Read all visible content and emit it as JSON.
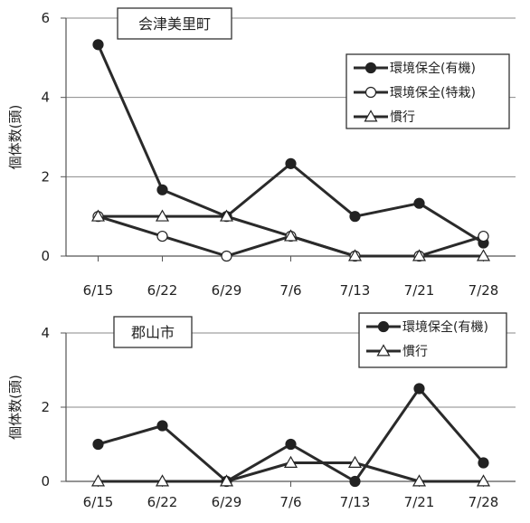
{
  "chart_data": [
    {
      "type": "line",
      "title": "会津美里町",
      "ylabel": "個体数(頭)",
      "xlabel": "",
      "categories": [
        "6/15",
        "6/22",
        "6/29",
        "7/6",
        "7/13",
        "7/21",
        "7/28"
      ],
      "ylim": [
        0,
        6
      ],
      "yticks": [
        0,
        2,
        4,
        6
      ],
      "grid": true,
      "legend_position": "top-right",
      "series": [
        {
          "name": "環境保全(有機)",
          "marker": "filled-circle",
          "values": [
            5.33,
            1.67,
            1.0,
            2.33,
            1.0,
            1.33,
            0.33
          ]
        },
        {
          "name": "環境保全(特栽)",
          "marker": "open-circle",
          "values": [
            1.0,
            0.5,
            0.0,
            0.5,
            0.0,
            0.0,
            0.5
          ]
        },
        {
          "name": "慣行",
          "marker": "open-triangle",
          "values": [
            1.0,
            1.0,
            1.0,
            0.5,
            0.0,
            0.0,
            0.0
          ]
        }
      ]
    },
    {
      "type": "line",
      "title": "郡山市",
      "ylabel": "個体数(頭)",
      "xlabel": "",
      "categories": [
        "6/15",
        "6/22",
        "6/29",
        "7/6",
        "7/13",
        "7/21",
        "7/28"
      ],
      "ylim": [
        0,
        4
      ],
      "yticks": [
        0,
        2,
        4
      ],
      "grid": true,
      "legend_position": "top-right",
      "series": [
        {
          "name": "環境保全(有機)",
          "marker": "filled-circle",
          "values": [
            1.0,
            1.5,
            0.0,
            1.0,
            0.0,
            2.5,
            0.5
          ]
        },
        {
          "name": "慣行",
          "marker": "open-triangle",
          "values": [
            0.0,
            0.0,
            0.0,
            0.5,
            0.5,
            0.0,
            0.0
          ]
        }
      ]
    }
  ]
}
